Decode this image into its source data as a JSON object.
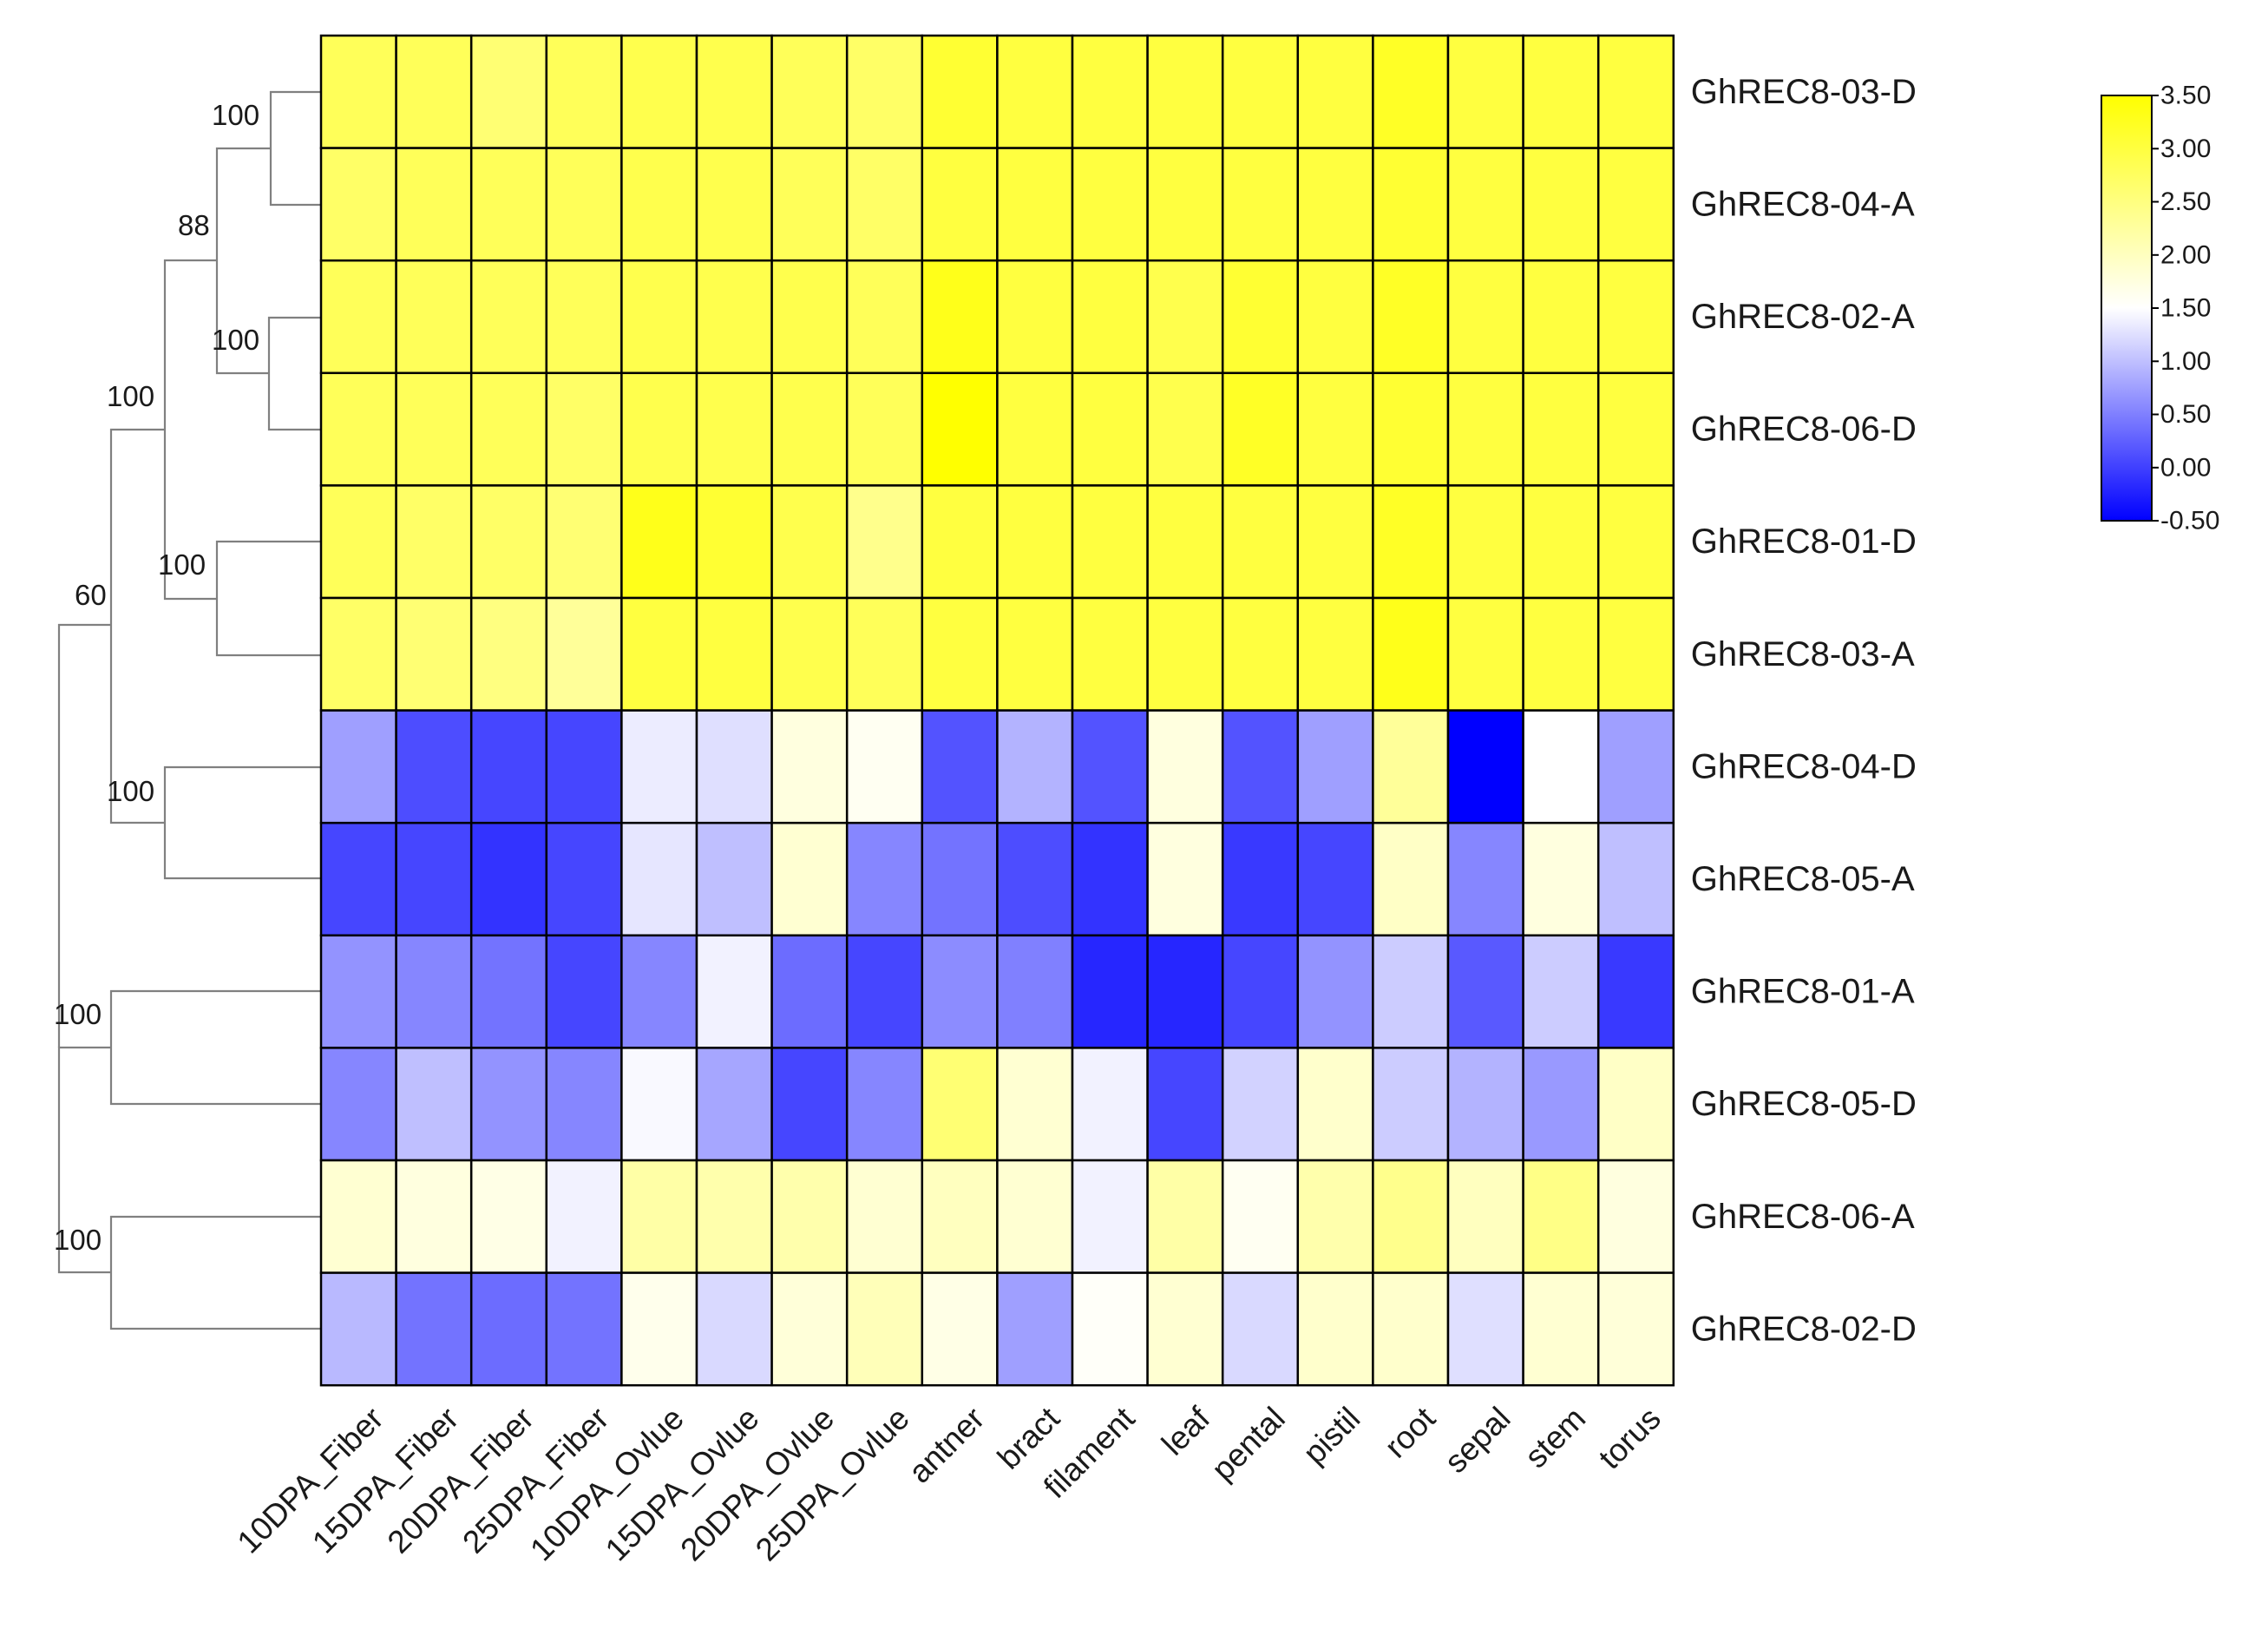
{
  "chart_data": {
    "type": "heatmap",
    "title": "",
    "columns": [
      "10DPA_Fiber",
      "15DPA_Fiber",
      "20DPA_Fiber",
      "25DPA_Fiber",
      "10DPA_Ovlue",
      "15DPA_Ovlue",
      "20DPA_Ovlue",
      "25DPA_Ovlue",
      "antner",
      "bract",
      "filament",
      "leaf",
      "pental",
      "pistil",
      "root",
      "sepal",
      "stem",
      "torus"
    ],
    "rows": [
      "GhREC8-03-D",
      "GhREC8-04-A",
      "GhREC8-02-A",
      "GhREC8-06-D",
      "GhREC8-01-D",
      "GhREC8-03-A",
      "GhREC8-04-D",
      "GhREC8-05-A",
      "GhREC8-01-A",
      "GhREC8-05-D",
      "GhREC8-06-A",
      "GhREC8-02-D"
    ],
    "values": [
      [
        2.8,
        2.8,
        2.6,
        2.8,
        2.9,
        2.9,
        2.8,
        2.7,
        3.1,
        3.0,
        3.0,
        3.0,
        3.0,
        3.0,
        3.2,
        3.0,
        3.0,
        3.0
      ],
      [
        2.7,
        2.8,
        2.8,
        2.8,
        2.9,
        2.9,
        2.8,
        2.7,
        3.0,
        3.0,
        3.0,
        3.0,
        3.0,
        3.0,
        3.1,
        3.0,
        3.0,
        3.0
      ],
      [
        2.8,
        2.8,
        2.8,
        2.8,
        2.9,
        2.9,
        2.9,
        2.8,
        3.3,
        3.0,
        3.0,
        2.9,
        3.1,
        3.0,
        3.2,
        3.0,
        3.0,
        3.0
      ],
      [
        2.8,
        2.8,
        2.8,
        2.7,
        2.9,
        2.9,
        2.9,
        2.8,
        3.5,
        3.0,
        3.0,
        2.9,
        3.2,
        3.0,
        3.1,
        3.0,
        3.0,
        3.0
      ],
      [
        2.8,
        2.7,
        2.7,
        2.6,
        3.3,
        3.1,
        2.9,
        2.4,
        3.0,
        3.0,
        3.0,
        3.0,
        3.0,
        3.0,
        3.2,
        3.0,
        3.0,
        3.0
      ],
      [
        2.7,
        2.6,
        2.5,
        2.3,
        3.0,
        3.0,
        2.9,
        2.8,
        3.0,
        3.0,
        3.0,
        3.0,
        3.0,
        3.0,
        3.3,
        3.0,
        3.0,
        3.0
      ],
      [
        0.75,
        0.1,
        0.05,
        0.05,
        1.35,
        1.25,
        1.75,
        1.6,
        0.15,
        0.9,
        0.15,
        1.75,
        0.15,
        0.75,
        2.3,
        -0.5,
        1.5,
        0.75
      ],
      [
        0.05,
        0.05,
        -0.1,
        0.05,
        1.3,
        1.0,
        1.85,
        0.55,
        0.4,
        0.1,
        -0.1,
        1.75,
        -0.05,
        0.05,
        1.95,
        0.55,
        1.75,
        1.0
      ],
      [
        0.65,
        0.55,
        0.4,
        0.05,
        0.55,
        1.4,
        0.35,
        0.05,
        0.6,
        0.5,
        -0.2,
        -0.2,
        0.05,
        0.65,
        1.1,
        0.2,
        1.1,
        -0.05
      ],
      [
        0.55,
        1.0,
        0.65,
        0.55,
        1.45,
        0.8,
        0.05,
        0.55,
        2.6,
        1.85,
        1.4,
        0.05,
        1.15,
        1.9,
        1.1,
        0.9,
        0.7,
        1.95
      ],
      [
        1.85,
        1.75,
        1.7,
        1.4,
        2.2,
        2.15,
        2.15,
        1.85,
        2.0,
        1.85,
        1.4,
        2.2,
        1.6,
        2.15,
        2.4,
        2.0,
        2.45,
        1.75
      ],
      [
        0.95,
        0.4,
        0.35,
        0.4,
        1.65,
        1.2,
        1.8,
        2.05,
        1.7,
        0.75,
        1.55,
        1.85,
        1.2,
        1.9,
        1.9,
        1.25,
        1.85,
        1.8
      ]
    ],
    "colorbar": {
      "min": -0.5,
      "max": 3.5,
      "colors": [
        "#0000ff",
        "#ffffff",
        "#ffff00"
      ],
      "ticks": [
        "3.50",
        "3.00",
        "2.50",
        "2.00",
        "1.50",
        "1.00",
        "0.50",
        "0.00",
        "-0.50"
      ],
      "tick_values": [
        3.5,
        3.0,
        2.5,
        2.0,
        1.5,
        1.0,
        0.5,
        0.0,
        -0.5
      ]
    },
    "dendrogram": {
      "bootstrap_labels": [
        "100",
        "88",
        "100",
        "100",
        "100",
        "60",
        "100",
        "100",
        "100"
      ]
    }
  }
}
